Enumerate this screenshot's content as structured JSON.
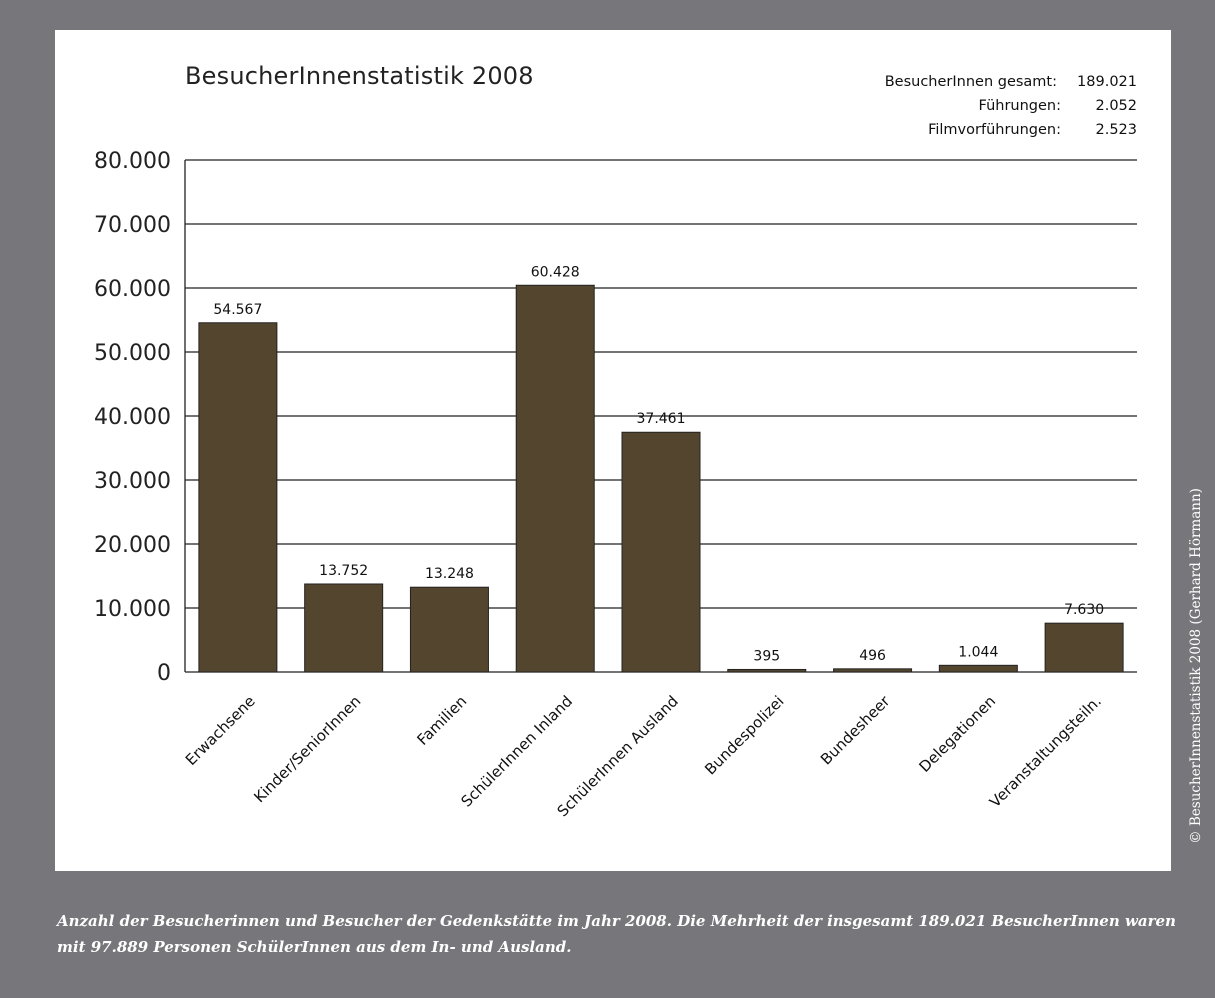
{
  "chart_data": {
    "type": "bar",
    "title": "BesucherInnenstatistik 2008",
    "categories": [
      "Erwachsene",
      "Kinder/SeniorInnen",
      "Familien",
      "SchülerInnen Inland",
      "SchülerInnen Ausland",
      "Bundespolizei",
      "Bundesheer",
      "Delegationen",
      "Veranstaltungsteiln."
    ],
    "values": [
      54567,
      13752,
      13248,
      60428,
      37461,
      395,
      496,
      1044,
      7630
    ],
    "value_labels": [
      "54.567",
      "13.752",
      "13.248",
      "60.428",
      "37.461",
      "395",
      "496",
      "1.044",
      "7.630"
    ],
    "ylim": [
      0,
      80000
    ],
    "yticks": [
      0,
      10000,
      20000,
      30000,
      40000,
      50000,
      60000,
      70000,
      80000
    ],
    "ytick_labels": [
      "0",
      "10.000",
      "20.000",
      "30.000",
      "40.000",
      "50.000",
      "60.000",
      "70.000",
      "80.000"
    ],
    "grid": true,
    "bar_color": "#54462e",
    "xlabel": "",
    "ylabel": ""
  },
  "stats": {
    "total_label": "BesucherInnen gesamt:",
    "total_value": "189.021",
    "tours_label": "Führungen:",
    "tours_value": "2.052",
    "films_label": "Filmvorführungen:",
    "films_value": "2.523"
  },
  "copyright": "© BesucherInnenstatistik 2008 (Gerhard Hörmann)",
  "caption": "Anzahl der Besucherinnen und Besucher der Gedenkstätte im Jahr 2008. Die Mehrheit der insgesamt 189.021 BesucherInnen waren mit 97.889 Personen SchülerInnen aus dem In- und Ausland.",
  "colors": {
    "background": "#77777b",
    "panel": "#ffffff",
    "bar": "#54462e"
  }
}
